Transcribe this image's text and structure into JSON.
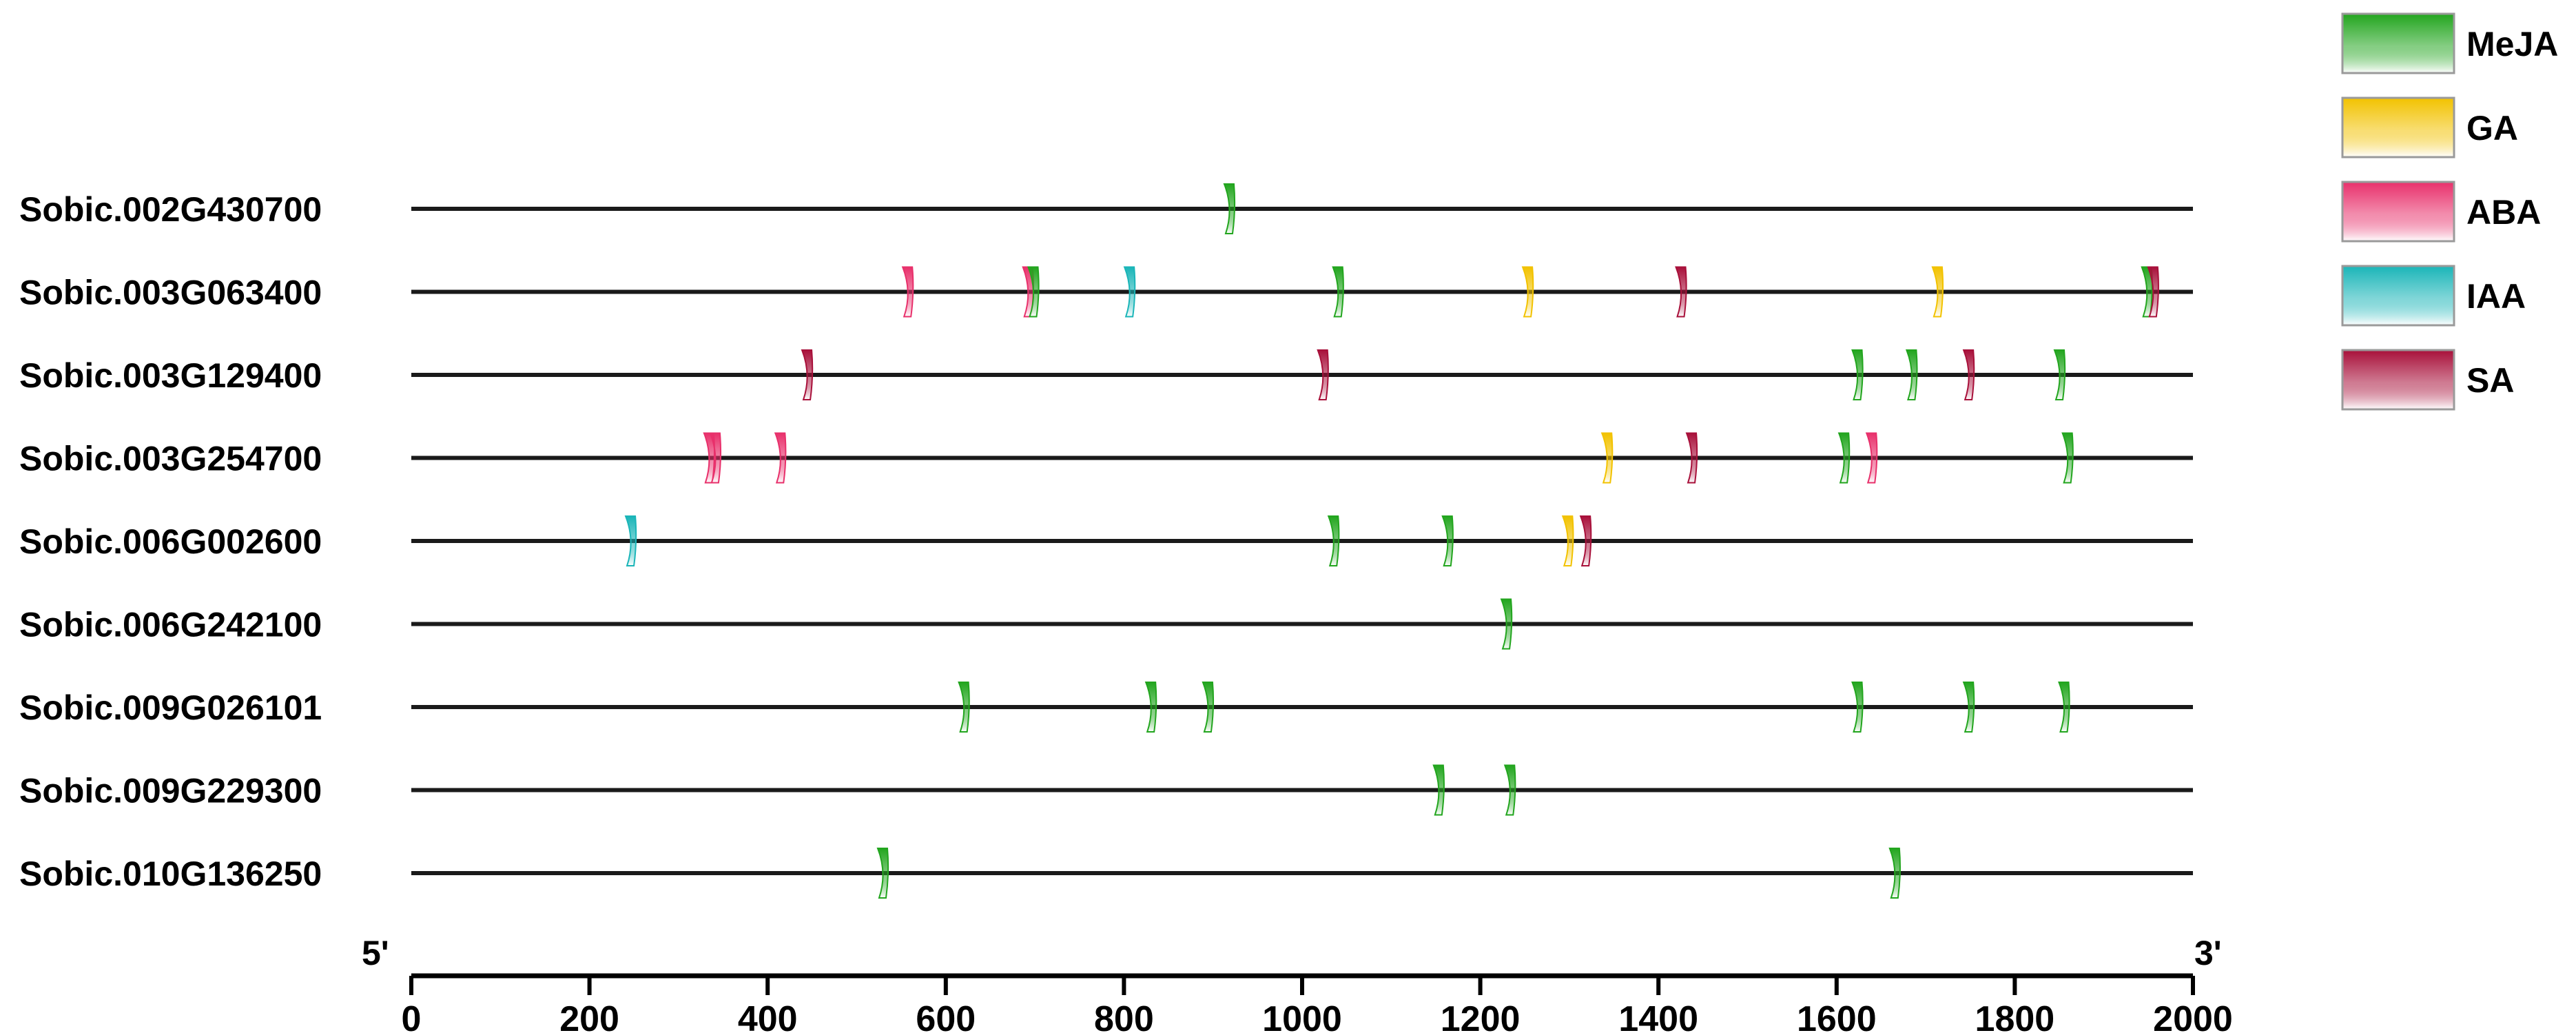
{
  "chart_data": {
    "type": "scatter",
    "xlim": [
      0,
      2000
    ],
    "x_ticks": [
      "0",
      "200",
      "400",
      "600",
      "800",
      "1000",
      "1200",
      "1400",
      "1600",
      "1800",
      "2000"
    ],
    "end_labels": {
      "start": "5'",
      "end": "3'"
    },
    "legend_placement": "top-right",
    "legend": [
      {
        "name": "MeJA",
        "color": "#22a51e"
      },
      {
        "name": "GA",
        "color": "#f2c200"
      },
      {
        "name": "ABA",
        "color": "#e8306b"
      },
      {
        "name": "IAA",
        "color": "#1ab5b8"
      },
      {
        "name": "SA",
        "color": "#a8103a"
      }
    ],
    "genes": [
      {
        "name": "Sobic.002G430700",
        "elements": [
          {
            "type": "MeJA",
            "x": 918
          }
        ]
      },
      {
        "name": "Sobic.003G063400",
        "elements": [
          {
            "type": "ABA",
            "x": 557
          },
          {
            "type": "ABA",
            "x": 692
          },
          {
            "type": "MeJA",
            "x": 698
          },
          {
            "type": "IAA",
            "x": 806
          },
          {
            "type": "MeJA",
            "x": 1040
          },
          {
            "type": "GA",
            "x": 1253
          },
          {
            "type": "SA",
            "x": 1425
          },
          {
            "type": "GA",
            "x": 1713
          },
          {
            "type": "MeJA",
            "x": 1948
          },
          {
            "type": "SA",
            "x": 1955
          }
        ]
      },
      {
        "name": "Sobic.003G129400",
        "elements": [
          {
            "type": "SA",
            "x": 444
          },
          {
            "type": "SA",
            "x": 1023
          },
          {
            "type": "MeJA",
            "x": 1623
          },
          {
            "type": "MeJA",
            "x": 1684
          },
          {
            "type": "SA",
            "x": 1748
          },
          {
            "type": "MeJA",
            "x": 1850
          }
        ]
      },
      {
        "name": "Sobic.003G254700",
        "elements": [
          {
            "type": "ABA",
            "x": 334
          },
          {
            "type": "ABA",
            "x": 341
          },
          {
            "type": "ABA",
            "x": 414
          },
          {
            "type": "GA",
            "x": 1342
          },
          {
            "type": "SA",
            "x": 1437
          },
          {
            "type": "MeJA",
            "x": 1608
          },
          {
            "type": "ABA",
            "x": 1639
          },
          {
            "type": "MeJA",
            "x": 1859
          }
        ]
      },
      {
        "name": "Sobic.006G002600",
        "elements": [
          {
            "type": "IAA",
            "x": 246
          },
          {
            "type": "MeJA",
            "x": 1035
          },
          {
            "type": "MeJA",
            "x": 1163
          },
          {
            "type": "GA",
            "x": 1298
          },
          {
            "type": "SA",
            "x": 1318
          }
        ]
      },
      {
        "name": "Sobic.006G242100",
        "elements": [
          {
            "type": "MeJA",
            "x": 1229
          }
        ]
      },
      {
        "name": "Sobic.009G026101",
        "elements": [
          {
            "type": "MeJA",
            "x": 620
          },
          {
            "type": "MeJA",
            "x": 830
          },
          {
            "type": "MeJA",
            "x": 894
          },
          {
            "type": "MeJA",
            "x": 1623
          },
          {
            "type": "MeJA",
            "x": 1748
          },
          {
            "type": "MeJA",
            "x": 1855
          }
        ]
      },
      {
        "name": "Sobic.009G229300",
        "elements": [
          {
            "type": "MeJA",
            "x": 1153
          },
          {
            "type": "MeJA",
            "x": 1233
          }
        ]
      },
      {
        "name": "Sobic.010G136250",
        "elements": [
          {
            "type": "MeJA",
            "x": 529
          },
          {
            "type": "MeJA",
            "x": 1665
          }
        ]
      }
    ]
  }
}
